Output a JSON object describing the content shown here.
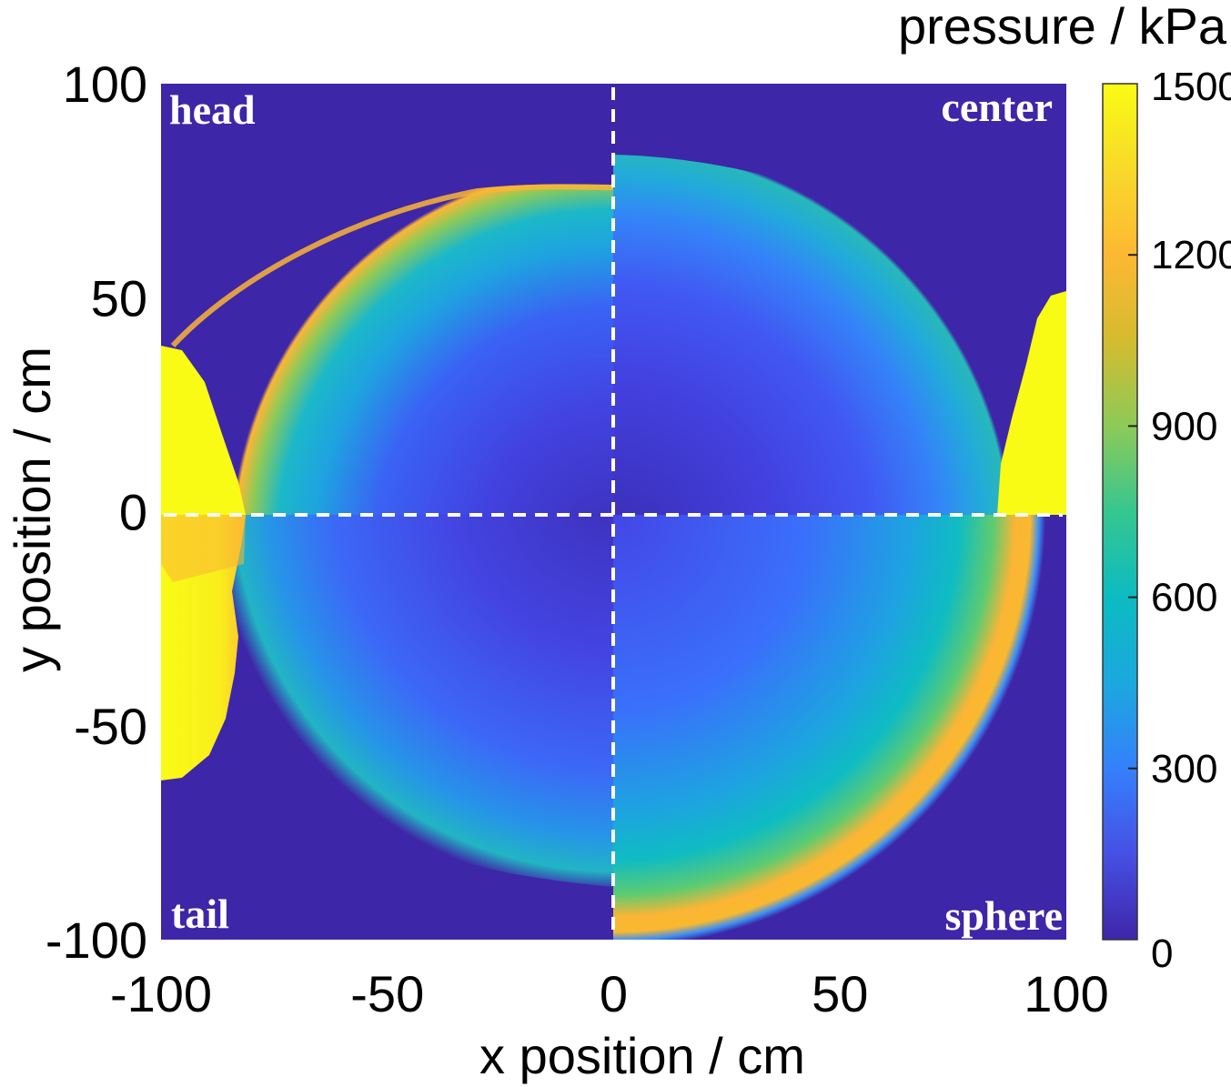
{
  "chart_data": {
    "type": "heatmap",
    "title": "",
    "xlabel": "x position / cm",
    "ylabel": "y position / cm",
    "xlim": [
      -100,
      100
    ],
    "ylim": [
      -100,
      100
    ],
    "xticks": [
      -100,
      -50,
      0,
      50,
      100
    ],
    "yticks": [
      100,
      50,
      0,
      -50,
      -100
    ],
    "grid": false,
    "divider_lines": {
      "x": 0,
      "y": 0,
      "style": "white dashed"
    },
    "colorbar": {
      "label": "pressure / kPa",
      "range": [
        0,
        1500
      ],
      "ticks": [
        0,
        300,
        600,
        900,
        1200,
        1500
      ],
      "colormap": "parula",
      "stops": [
        "#3e26a8",
        "#4750e4",
        "#3580fb",
        "#1ca8de",
        "#0cbbc2",
        "#36c690",
        "#8dca58",
        "#d5bb30",
        "#fdb833",
        "#f8d92a",
        "#f9fb15"
      ]
    },
    "quadrants": [
      {
        "label": "head",
        "position": "top-left",
        "description": "wave front arc reaching y≈78 at x=0, ~1200-1300 kPa band on front; saturated >1500 region near x=-100, y from -60 to 40"
      },
      {
        "label": "center",
        "position": "top-right",
        "description": "front at y≈83 at x=0 falling to y≈50 at x=100; saturated >1500 region near x=85..100, y=0..50"
      },
      {
        "label": "tail",
        "position": "bottom-left",
        "description": "front at y≈-87 near x=0 rising to y≈-60 at x=-100; interior 100-400 kPa"
      },
      {
        "label": "sphere",
        "position": "bottom-right",
        "description": "spherical front of radius ≈95 cm centered at origin, peak ~1300 kPa band"
      }
    ]
  }
}
